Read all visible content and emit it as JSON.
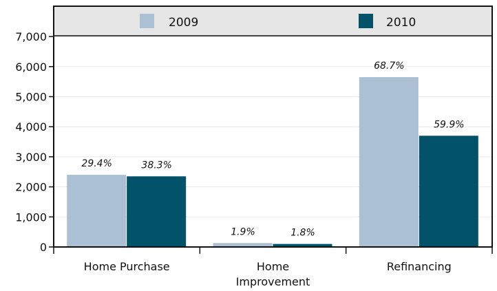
{
  "chart_data": {
    "type": "bar",
    "title": "",
    "xlabel": "",
    "ylabel": "",
    "categories": [
      "Home Purchase",
      "Home Improvement",
      "Refinancing"
    ],
    "category_lines": [
      [
        "Home Purchase"
      ],
      [
        "Home",
        "Improvement"
      ],
      [
        "Refinancing"
      ]
    ],
    "series": [
      {
        "name": "2009",
        "values": [
          2400,
          130,
          5650
        ],
        "data_labels": [
          "29.4%",
          "1.9%",
          "68.7%"
        ],
        "color": "#acc0d3"
      },
      {
        "name": "2010",
        "values": [
          2350,
          100,
          3700
        ],
        "data_labels": [
          "38.3%",
          "1.8%",
          "59.9%"
        ],
        "color": "#02526a"
      }
    ],
    "ylim": [
      0,
      7000
    ],
    "yticks": [
      0,
      1000,
      2000,
      3000,
      4000,
      5000,
      6000,
      7000
    ],
    "ytick_labels": [
      "0",
      "1,000",
      "2,000",
      "3,000",
      "4,000",
      "5,000",
      "6,000",
      "7,000"
    ],
    "grid": true,
    "legend": {
      "position": "top",
      "background": "#e6e6e6"
    }
  }
}
